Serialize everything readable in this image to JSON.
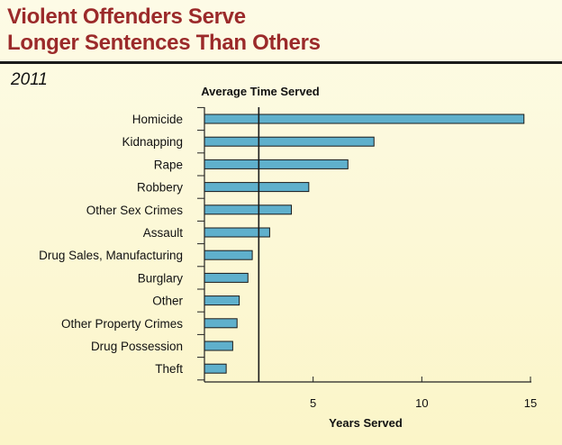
{
  "header": {
    "title_line1": "Violent Offenders Serve",
    "title_line2": "Longer Sentences Than Others",
    "year": "2011"
  },
  "colors": {
    "title": "#9b2a2a",
    "bar_fill": "#5fb0cc",
    "bar_stroke": "#1a1a1a",
    "reference_line": "#1a1a1a"
  },
  "chart_data": {
    "type": "bar",
    "orientation": "horizontal",
    "title": "Average Time Served",
    "xlabel": "Years Served",
    "ylabel": "",
    "categories": [
      "Homicide",
      "Kidnapping",
      "Rape",
      "Robbery",
      "Other Sex Crimes",
      "Assault",
      "Drug Sales, Manufacturing",
      "Burglary",
      "Other",
      "Other Property Crimes",
      "Drug Possession",
      "Theft"
    ],
    "values": [
      14.7,
      7.8,
      6.6,
      4.8,
      4.0,
      3.0,
      2.2,
      2.0,
      1.6,
      1.5,
      1.3,
      1.0
    ],
    "xlim": [
      0,
      15
    ],
    "xticks": [
      5,
      10,
      15
    ],
    "reference_line_x": 2.5,
    "grid": false,
    "legend": "none"
  }
}
